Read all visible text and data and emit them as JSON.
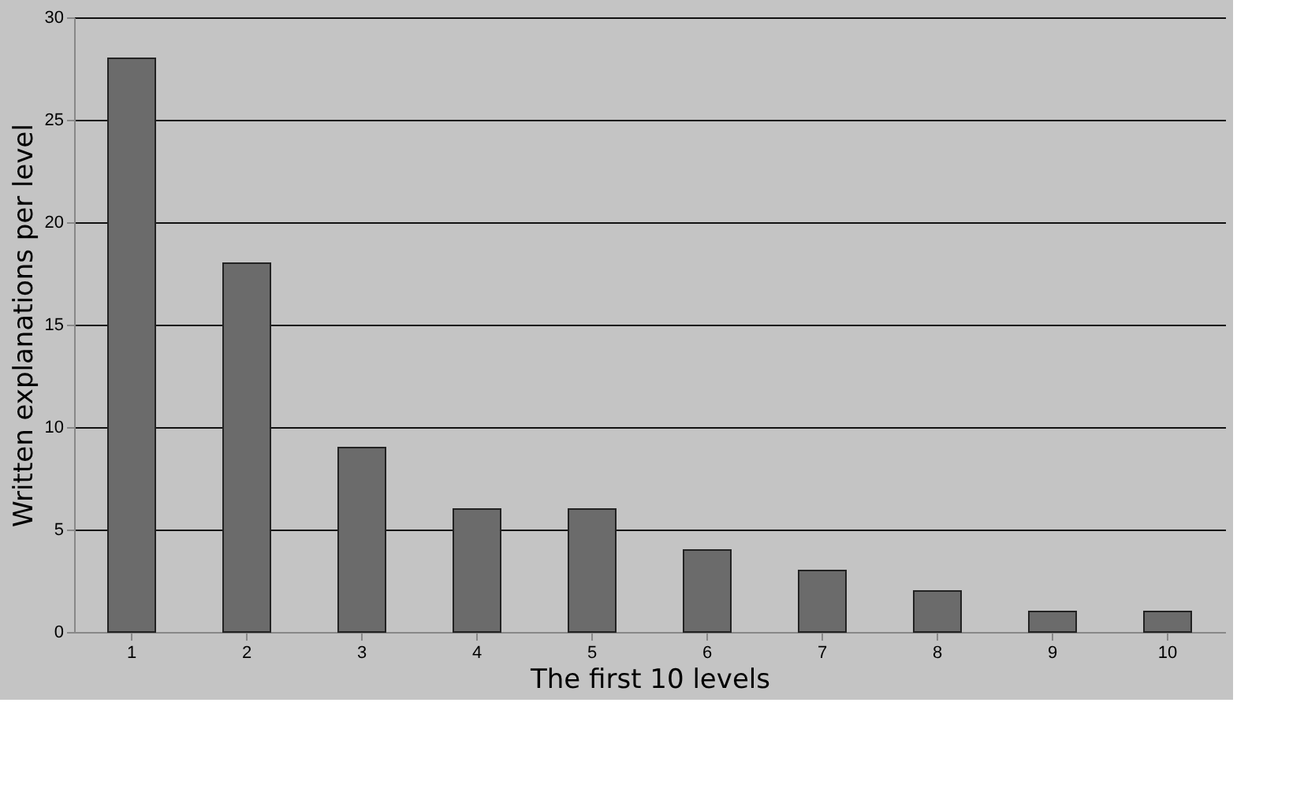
{
  "chart_data": {
    "type": "bar",
    "xlabel": "The first 10 levels",
    "ylabel": "Written explanations per level",
    "categories": [
      "1",
      "2",
      "3",
      "4",
      "5",
      "6",
      "7",
      "8",
      "9",
      "10"
    ],
    "values": [
      28,
      18,
      9,
      6,
      6,
      4,
      3,
      2,
      1,
      1
    ],
    "color": "#6b6b6b",
    "ylim": [
      0,
      30
    ],
    "yticks": [
      0,
      5,
      10,
      15,
      20,
      25,
      30
    ],
    "grid": "y"
  }
}
